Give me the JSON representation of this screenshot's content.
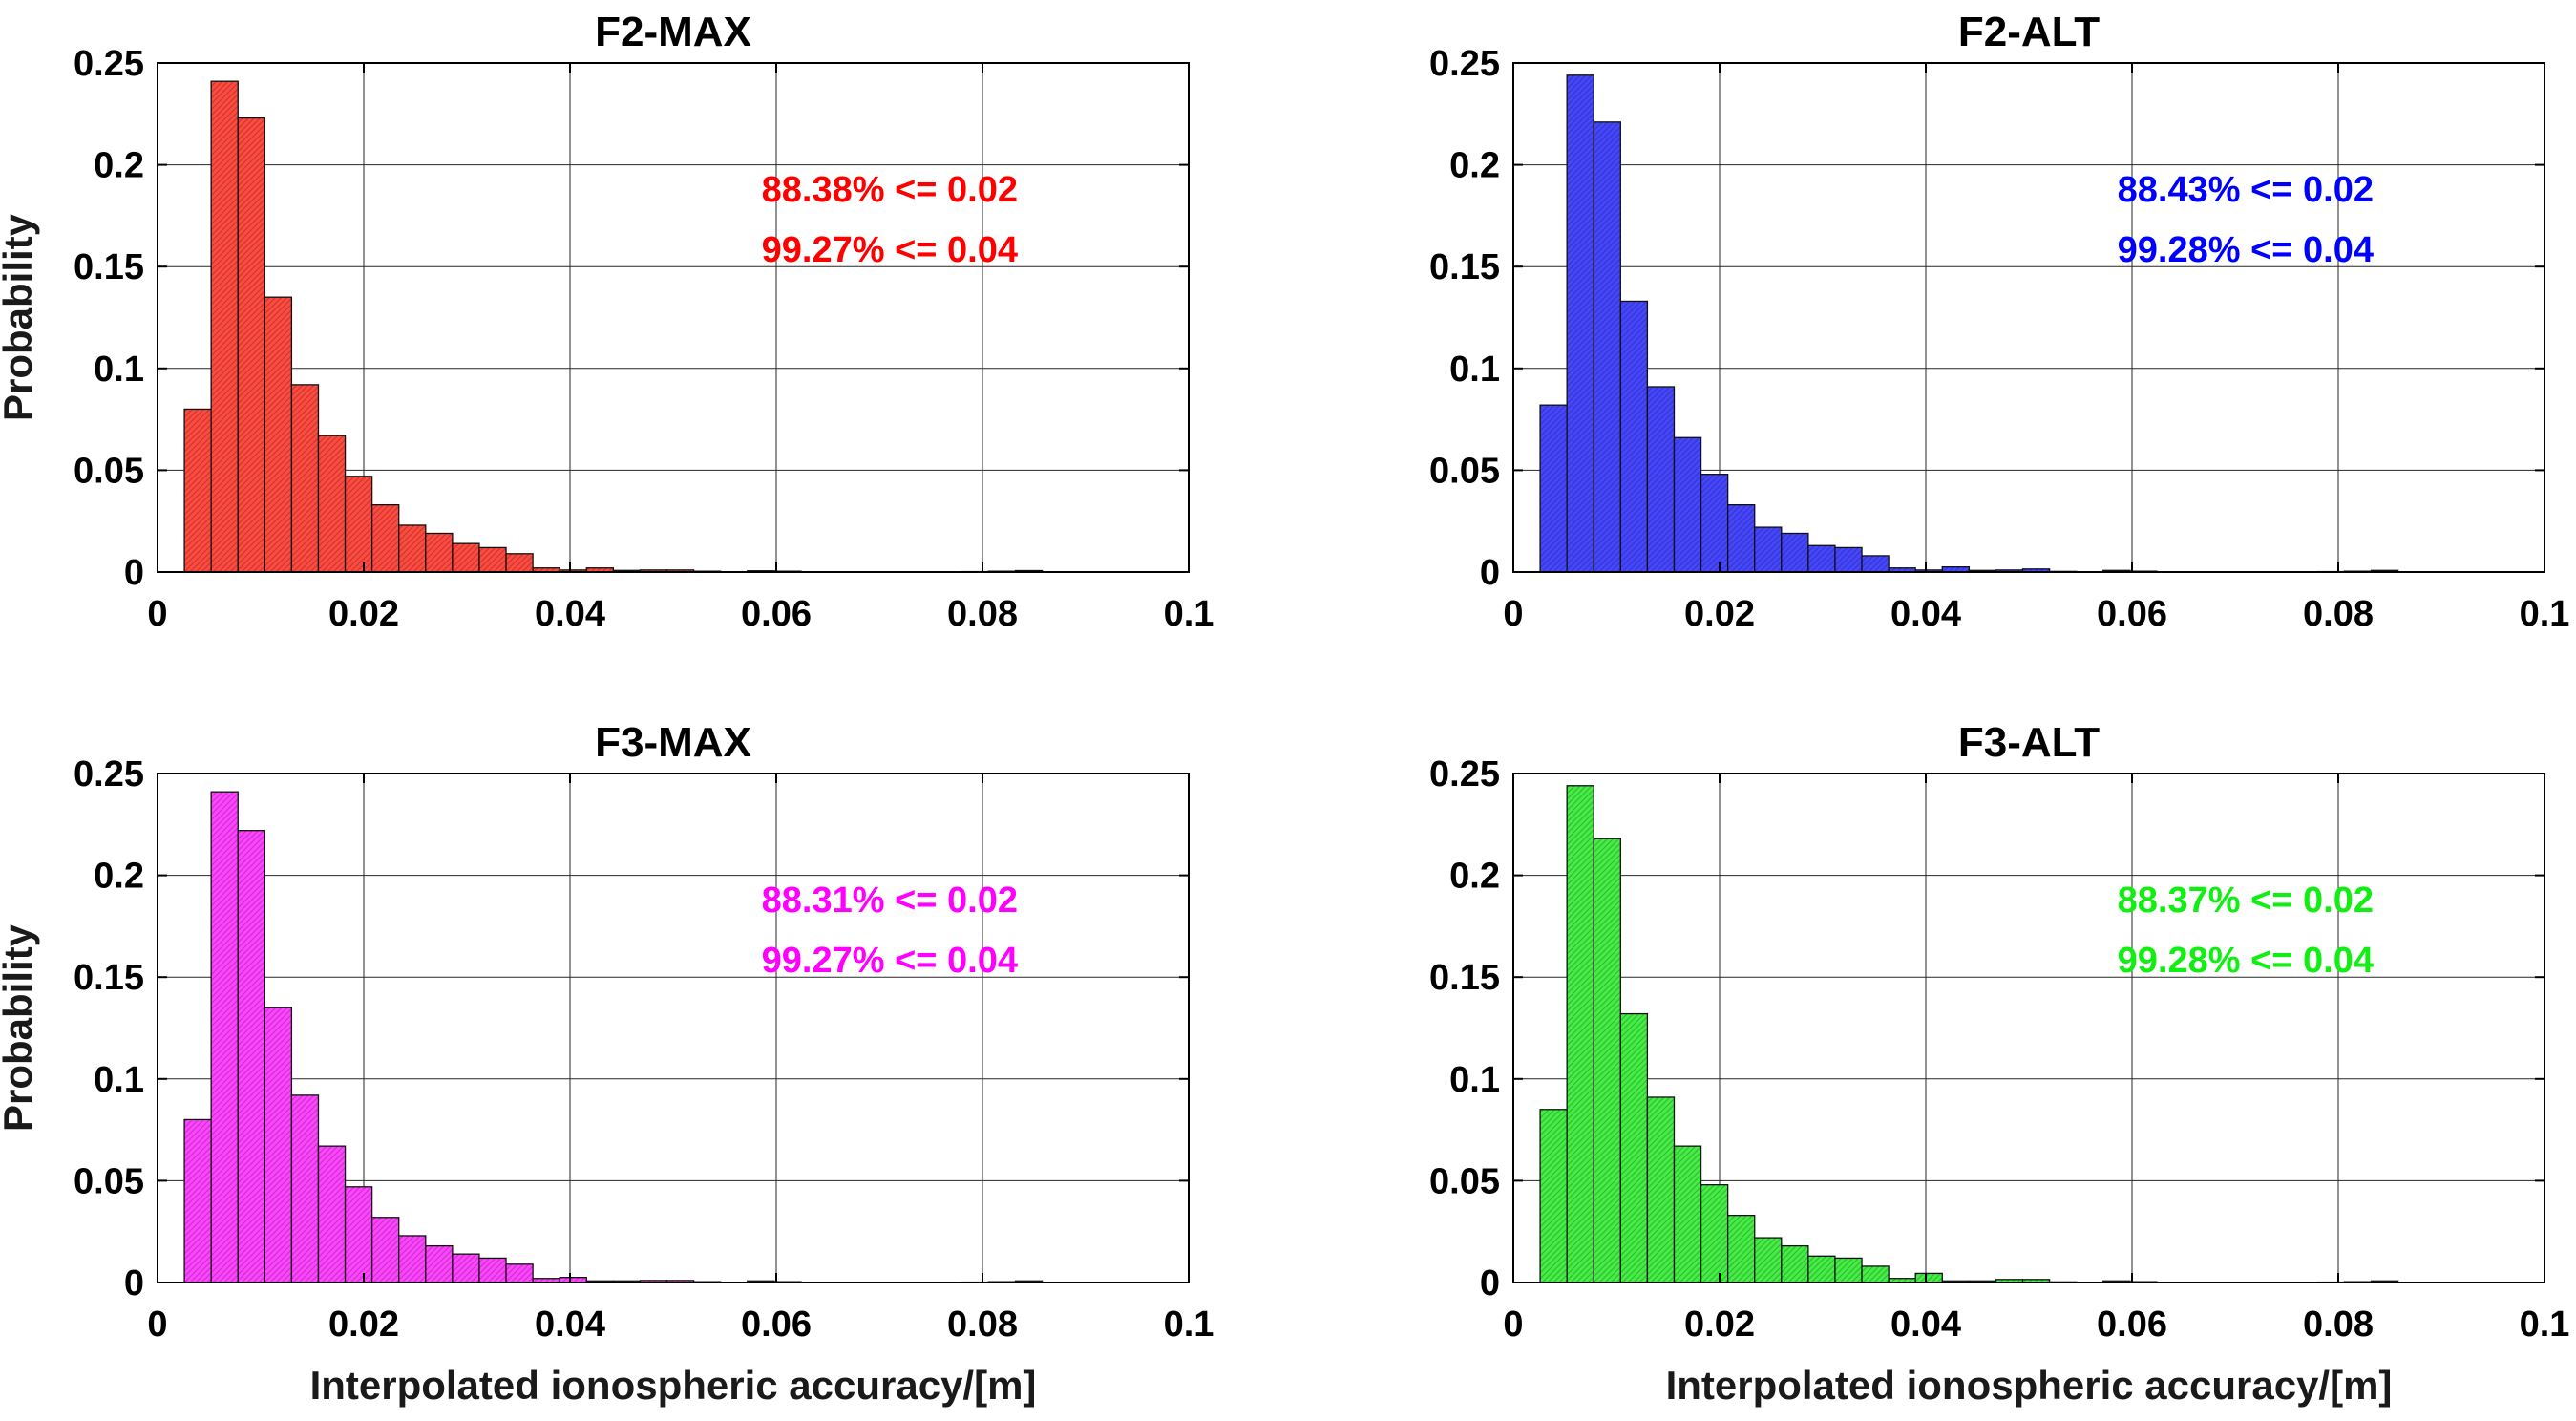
{
  "chart_data": [
    {
      "type": "bar",
      "title": "F2-MAX",
      "xlabel": "",
      "ylabel": "Probability",
      "xlim": [
        0,
        0.1
      ],
      "ylim": [
        0,
        0.25
      ],
      "xticks": [
        "0",
        "0.02",
        "0.04",
        "0.06",
        "0.08",
        "0.1"
      ],
      "yticks": [
        "0",
        "0.05",
        "0.1",
        "0.15",
        "0.2",
        "0.25"
      ],
      "bin_start": 0.0026,
      "bin_width": 0.0026,
      "values": [
        0.08,
        0.241,
        0.223,
        0.135,
        0.092,
        0.067,
        0.047,
        0.033,
        0.023,
        0.019,
        0.014,
        0.012,
        0.009,
        0.002,
        0.001,
        0.002,
        0.0008,
        0.001,
        0.001,
        0.0004,
        0,
        0.0006,
        0.0004,
        0,
        0,
        0,
        0,
        0,
        0,
        0.0002,
        0.0004,
        0.0007,
        0,
        0,
        0,
        0,
        0
      ],
      "color": "#ff4a3f",
      "annotation_color": "#ff0000",
      "annotations": [
        "88.38% <= 0.02",
        "99.27% <= 0.04"
      ]
    },
    {
      "type": "bar",
      "title": "F2-ALT",
      "xlabel": "",
      "ylabel": "",
      "xlim": [
        0,
        0.1
      ],
      "ylim": [
        0,
        0.25
      ],
      "xticks": [
        "0",
        "0.02",
        "0.04",
        "0.06",
        "0.08",
        "0.1"
      ],
      "yticks": [
        "0",
        "0.05",
        "0.1",
        "0.15",
        "0.2",
        "0.25"
      ],
      "bin_start": 0.0026,
      "bin_width": 0.0026,
      "values": [
        0.082,
        0.244,
        0.221,
        0.133,
        0.091,
        0.066,
        0.048,
        0.033,
        0.022,
        0.019,
        0.013,
        0.012,
        0.008,
        0.002,
        0.001,
        0.0025,
        0.0008,
        0.001,
        0.0015,
        0.0003,
        0,
        0.0008,
        0.0004,
        0,
        0,
        0,
        0,
        0,
        0,
        0.0002,
        0.0004,
        0.0008,
        0,
        0,
        0,
        0,
        0
      ],
      "color": "#4646ff",
      "annotation_color": "#0000ff",
      "annotations": [
        "88.43% <= 0.02",
        "99.28% <= 0.04"
      ]
    },
    {
      "type": "bar",
      "title": "F3-MAX",
      "xlabel": "Interpolated ionospheric accuracy/[m]",
      "ylabel": "Probability",
      "xlim": [
        0,
        0.1
      ],
      "ylim": [
        0,
        0.25
      ],
      "xticks": [
        "0",
        "0.02",
        "0.04",
        "0.06",
        "0.08",
        "0.1"
      ],
      "yticks": [
        "0",
        "0.05",
        "0.1",
        "0.15",
        "0.2",
        "0.25"
      ],
      "bin_start": 0.0026,
      "bin_width": 0.0026,
      "values": [
        0.08,
        0.241,
        0.222,
        0.135,
        0.092,
        0.067,
        0.047,
        0.032,
        0.023,
        0.018,
        0.014,
        0.012,
        0.009,
        0.002,
        0.0025,
        0.0008,
        0.0008,
        0.001,
        0.001,
        0.0004,
        0,
        0.0008,
        0.0004,
        0,
        0,
        0,
        0,
        0,
        0,
        0.0002,
        0.0004,
        0.0008,
        0,
        0,
        0,
        0,
        0
      ],
      "color": "#ff44ff",
      "annotation_color": "#ff00ff",
      "annotations": [
        "88.31% <= 0.02",
        "99.27% <= 0.04"
      ]
    },
    {
      "type": "bar",
      "title": "F3-ALT",
      "xlabel": "Interpolated ionospheric accuracy/[m]",
      "ylabel": "",
      "xlim": [
        0,
        0.1
      ],
      "ylim": [
        0,
        0.25
      ],
      "xticks": [
        "0",
        "0.02",
        "0.04",
        "0.06",
        "0.08",
        "0.1"
      ],
      "yticks": [
        "0",
        "0.05",
        "0.1",
        "0.15",
        "0.2",
        "0.25"
      ],
      "bin_start": 0.0026,
      "bin_width": 0.0026,
      "values": [
        0.085,
        0.244,
        0.218,
        0.132,
        0.091,
        0.067,
        0.048,
        0.033,
        0.022,
        0.018,
        0.013,
        0.012,
        0.008,
        0.002,
        0.0045,
        0.0008,
        0.0008,
        0.0015,
        0.0015,
        0.0003,
        0,
        0.0008,
        0.0004,
        0,
        0,
        0,
        0,
        0,
        0,
        0.0002,
        0.0004,
        0.0008,
        0,
        0,
        0,
        0,
        0
      ],
      "color": "#44ee44",
      "annotation_color": "#11ee11",
      "annotations": [
        "88.37% <= 0.02",
        "99.28% <= 0.04"
      ]
    }
  ]
}
